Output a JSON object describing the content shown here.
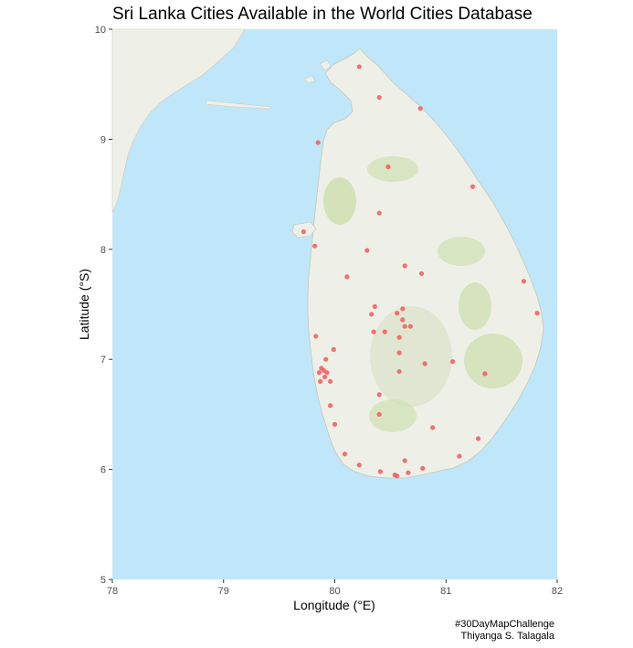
{
  "title": "Sri Lanka Cities Available in the World Cities Database",
  "caption": {
    "line1": "#30DayMapChallenge",
    "line2": "Thiyanga S. Talagala"
  },
  "colors": {
    "sea": "#bfe7f9",
    "land": "#eef0e8",
    "forest": "#cfe0b2",
    "city_point": "#f05a5a"
  },
  "chart_data": {
    "type": "scatter",
    "xlabel": "Longitude (°E)",
    "ylabel": "Latitude (°S)",
    "xlim": [
      78,
      82
    ],
    "ylim": [
      5,
      10
    ],
    "x_ticks": [
      "78",
      "79",
      "80",
      "81",
      "82"
    ],
    "y_ticks": [
      "5",
      "6",
      "7",
      "8",
      "9",
      "10"
    ],
    "grid": false,
    "basemap": "terrain tiles",
    "points": [
      [
        80.22,
        9.66
      ],
      [
        80.4,
        9.38
      ],
      [
        80.77,
        9.28
      ],
      [
        79.85,
        8.97
      ],
      [
        80.48,
        8.75
      ],
      [
        81.24,
        8.57
      ],
      [
        80.4,
        8.33
      ],
      [
        79.72,
        8.16
      ],
      [
        79.82,
        8.03
      ],
      [
        80.29,
        7.99
      ],
      [
        80.63,
        7.85
      ],
      [
        80.78,
        7.78
      ],
      [
        80.11,
        7.75
      ],
      [
        81.7,
        7.71
      ],
      [
        81.82,
        7.42
      ],
      [
        80.36,
        7.48
      ],
      [
        80.33,
        7.41
      ],
      [
        80.56,
        7.42
      ],
      [
        80.61,
        7.46
      ],
      [
        80.61,
        7.36
      ],
      [
        80.63,
        7.3
      ],
      [
        80.68,
        7.3
      ],
      [
        80.58,
        7.2
      ],
      [
        80.35,
        7.25
      ],
      [
        80.45,
        7.25
      ],
      [
        79.83,
        7.21
      ],
      [
        79.99,
        7.09
      ],
      [
        80.58,
        7.06
      ],
      [
        80.81,
        6.96
      ],
      [
        81.06,
        6.98
      ],
      [
        80.58,
        6.89
      ],
      [
        79.88,
        6.92
      ],
      [
        79.9,
        6.9
      ],
      [
        79.86,
        6.88
      ],
      [
        79.93,
        6.88
      ],
      [
        79.91,
        6.84
      ],
      [
        79.87,
        6.8
      ],
      [
        79.96,
        6.8
      ],
      [
        79.92,
        7.0
      ],
      [
        81.35,
        6.87
      ],
      [
        80.4,
        6.68
      ],
      [
        79.96,
        6.58
      ],
      [
        80.4,
        6.5
      ],
      [
        80.0,
        6.41
      ],
      [
        80.88,
        6.38
      ],
      [
        81.29,
        6.28
      ],
      [
        80.09,
        6.14
      ],
      [
        81.12,
        6.12
      ],
      [
        80.22,
        6.04
      ],
      [
        80.63,
        6.08
      ],
      [
        80.79,
        6.01
      ],
      [
        80.41,
        5.98
      ],
      [
        80.54,
        5.95
      ],
      [
        80.56,
        5.94
      ],
      [
        80.66,
        5.97
      ]
    ]
  }
}
